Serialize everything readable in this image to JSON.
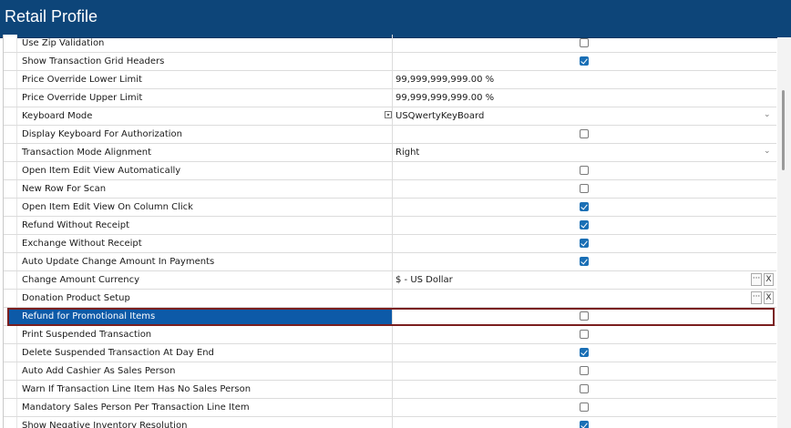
{
  "window": {
    "title": "Retail Profile"
  },
  "rows": [
    {
      "label": "Use Zip Validation",
      "type": "check",
      "checked": false
    },
    {
      "label": "Show Transaction Grid Headers",
      "type": "check",
      "checked": true
    },
    {
      "label": "Price Override Lower Limit",
      "type": "text",
      "value": "99,999,999,999.00 %"
    },
    {
      "label": "Price Override Upper Limit",
      "type": "text",
      "value": "99,999,999,999.00 %"
    },
    {
      "label": "Keyboard Mode",
      "type": "select",
      "value": "USQwertyKeyBoard",
      "edit_icon": true
    },
    {
      "label": "Display Keyboard For Authorization",
      "type": "check",
      "checked": false
    },
    {
      "label": "Transaction Mode Alignment",
      "type": "select",
      "value": "Right"
    },
    {
      "label": "Open Item Edit View Automatically",
      "type": "check",
      "checked": false
    },
    {
      "label": "New Row For Scan",
      "type": "check",
      "checked": false
    },
    {
      "label": "Open Item Edit View On Column Click",
      "type": "check",
      "checked": true
    },
    {
      "label": "Refund Without Receipt",
      "type": "check",
      "checked": true
    },
    {
      "label": "Exchange Without Receipt",
      "type": "check",
      "checked": true
    },
    {
      "label": "Auto Update Change Amount In Payments",
      "type": "check",
      "checked": true
    },
    {
      "label": "Change Amount Currency",
      "type": "lookup",
      "value": "$ - US Dollar"
    },
    {
      "label": "Donation Product Setup",
      "type": "lookup",
      "value": ""
    },
    {
      "label": "Refund for Promotional Items",
      "type": "check",
      "checked": false,
      "selected": true
    },
    {
      "label": "Print Suspended Transaction",
      "type": "check",
      "checked": false
    },
    {
      "label": "Delete Suspended Transaction At Day End",
      "type": "check",
      "checked": true
    },
    {
      "label": "Auto Add Cashier As Sales Person",
      "type": "check",
      "checked": false
    },
    {
      "label": "Warn If Transaction Line Item Has No Sales Person",
      "type": "check",
      "checked": false
    },
    {
      "label": "Mandatory Sales Person Per Transaction Line Item",
      "type": "check",
      "checked": false
    },
    {
      "label": "Show Negative Inventory Resolution",
      "type": "check",
      "checked": true
    }
  ],
  "buttons": {
    "more": "···",
    "clear": "X"
  },
  "colors": {
    "titlebar": "#0d4579",
    "selection": "#0d5aa8",
    "highlight_border": "#7a1f1f",
    "checkbox_on": "#1a6fb5"
  }
}
